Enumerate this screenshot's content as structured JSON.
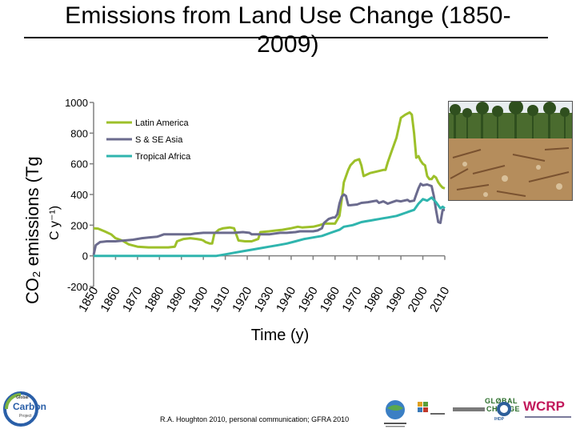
{
  "slide": {
    "title_line1": "Emissions from Land Use Change (1850-",
    "title_line2": "2009)",
    "credit": "R.A. Houghton 2010, personal communication; GFRA 2010"
  },
  "logos": {
    "gcp_small": "Global",
    "gcp_main": "Carbon",
    "gcp_sub": "Project",
    "global_change_1": "GLØBAL",
    "global_change_2": "CHANGE",
    "wcrp": "WCRP",
    "ihdp": "IHDP"
  },
  "chart_data": {
    "type": "line",
    "title": "",
    "ylabel_main": "CO₂ emissions (Tg",
    "ylabel_unit": "C y⁻¹)",
    "xlabel": "Time (y)",
    "xlim": [
      1850,
      2010
    ],
    "ylim": [
      -200,
      1000
    ],
    "yticks": [
      "-200",
      "0",
      "200",
      "400",
      "600",
      "800",
      "1000"
    ],
    "xticks": [
      "1850",
      "1860",
      "1870",
      "1880",
      "1890",
      "1900",
      "1910",
      "1920",
      "1930",
      "1940",
      "1950",
      "1960",
      "1970",
      "1980",
      "1990",
      "2000",
      "2010"
    ],
    "legend_position": "top-left",
    "series": [
      {
        "name": "Latin America",
        "color": "#9dc02a",
        "points": [
          [
            1850,
            180
          ],
          [
            1852,
            178
          ],
          [
            1855,
            160
          ],
          [
            1858,
            140
          ],
          [
            1860,
            115
          ],
          [
            1863,
            100
          ],
          [
            1866,
            75
          ],
          [
            1870,
            60
          ],
          [
            1875,
            55
          ],
          [
            1880,
            55
          ],
          [
            1884,
            55
          ],
          [
            1887,
            60
          ],
          [
            1888,
            95
          ],
          [
            1891,
            110
          ],
          [
            1894,
            115
          ],
          [
            1897,
            110
          ],
          [
            1899,
            105
          ],
          [
            1900,
            100
          ],
          [
            1901,
            90
          ],
          [
            1903,
            80
          ],
          [
            1904,
            80
          ],
          [
            1905,
            145
          ],
          [
            1907,
            170
          ],
          [
            1909,
            180
          ],
          [
            1912,
            185
          ],
          [
            1914,
            180
          ],
          [
            1916,
            100
          ],
          [
            1919,
            95
          ],
          [
            1922,
            95
          ],
          [
            1925,
            110
          ],
          [
            1926,
            155
          ],
          [
            1930,
            160
          ],
          [
            1933,
            165
          ],
          [
            1936,
            170
          ],
          [
            1938,
            175
          ],
          [
            1940,
            180
          ],
          [
            1943,
            190
          ],
          [
            1945,
            185
          ],
          [
            1950,
            190
          ],
          [
            1953,
            200
          ],
          [
            1955,
            210
          ],
          [
            1958,
            210
          ],
          [
            1960,
            210
          ],
          [
            1962,
            260
          ],
          [
            1963,
            360
          ],
          [
            1964,
            480
          ],
          [
            1966,
            560
          ],
          [
            1967,
            590
          ],
          [
            1969,
            620
          ],
          [
            1971,
            630
          ],
          [
            1972,
            590
          ],
          [
            1973,
            520
          ],
          [
            1976,
            540
          ],
          [
            1979,
            550
          ],
          [
            1982,
            560
          ],
          [
            1983,
            560
          ],
          [
            1984,
            610
          ],
          [
            1986,
            690
          ],
          [
            1988,
            770
          ],
          [
            1990,
            900
          ],
          [
            1992,
            920
          ],
          [
            1994,
            935
          ],
          [
            1995,
            920
          ],
          [
            1996,
            800
          ],
          [
            1997,
            640
          ],
          [
            1998,
            650
          ],
          [
            1999,
            620
          ],
          [
            2000,
            600
          ],
          [
            2001,
            590
          ],
          [
            2002,
            520
          ],
          [
            2003,
            500
          ],
          [
            2004,
            500
          ],
          [
            2005,
            520
          ],
          [
            2006,
            510
          ],
          [
            2007,
            480
          ],
          [
            2008,
            460
          ],
          [
            2009,
            445
          ],
          [
            2010,
            440
          ]
        ]
      },
      {
        "name": "S & SE Asia",
        "color": "#6b6b8e",
        "points": [
          [
            1850,
            5
          ],
          [
            1851,
            70
          ],
          [
            1853,
            90
          ],
          [
            1856,
            95
          ],
          [
            1860,
            95
          ],
          [
            1864,
            100
          ],
          [
            1868,
            105
          ],
          [
            1872,
            115
          ],
          [
            1875,
            120
          ],
          [
            1879,
            125
          ],
          [
            1880,
            130
          ],
          [
            1882,
            140
          ],
          [
            1884,
            140
          ],
          [
            1890,
            140
          ],
          [
            1894,
            140
          ],
          [
            1896,
            145
          ],
          [
            1900,
            150
          ],
          [
            1905,
            150
          ],
          [
            1910,
            150
          ],
          [
            1914,
            150
          ],
          [
            1918,
            155
          ],
          [
            1921,
            150
          ],
          [
            1922,
            140
          ],
          [
            1926,
            140
          ],
          [
            1930,
            140
          ],
          [
            1935,
            150
          ],
          [
            1938,
            150
          ],
          [
            1942,
            155
          ],
          [
            1944,
            160
          ],
          [
            1946,
            160
          ],
          [
            1950,
            160
          ],
          [
            1952,
            165
          ],
          [
            1954,
            180
          ],
          [
            1955,
            215
          ],
          [
            1957,
            240
          ],
          [
            1958,
            245
          ],
          [
            1959,
            250
          ],
          [
            1960,
            250
          ],
          [
            1961,
            270
          ],
          [
            1962,
            340
          ],
          [
            1963,
            385
          ],
          [
            1964,
            400
          ],
          [
            1965,
            390
          ],
          [
            1966,
            330
          ],
          [
            1967,
            330
          ],
          [
            1970,
            335
          ],
          [
            1972,
            345
          ],
          [
            1975,
            350
          ],
          [
            1977,
            355
          ],
          [
            1979,
            360
          ],
          [
            1980,
            345
          ],
          [
            1982,
            355
          ],
          [
            1984,
            340
          ],
          [
            1986,
            350
          ],
          [
            1988,
            360
          ],
          [
            1990,
            355
          ],
          [
            1993,
            365
          ],
          [
            1994,
            355
          ],
          [
            1996,
            360
          ],
          [
            1997,
            400
          ],
          [
            1998,
            440
          ],
          [
            1999,
            470
          ],
          [
            2000,
            460
          ],
          [
            2002,
            465
          ],
          [
            2004,
            455
          ],
          [
            2005,
            390
          ],
          [
            2006,
            300
          ],
          [
            2007,
            220
          ],
          [
            2008,
            215
          ],
          [
            2009,
            300
          ],
          [
            2010,
            300
          ]
        ]
      },
      {
        "name": "Tropical Africa",
        "color": "#2fb5ae",
        "points": [
          [
            1850,
            0
          ],
          [
            1860,
            0
          ],
          [
            1870,
            0
          ],
          [
            1880,
            0
          ],
          [
            1890,
            0
          ],
          [
            1900,
            0
          ],
          [
            1906,
            0
          ],
          [
            1910,
            10
          ],
          [
            1914,
            20
          ],
          [
            1918,
            30
          ],
          [
            1922,
            40
          ],
          [
            1926,
            50
          ],
          [
            1930,
            60
          ],
          [
            1934,
            70
          ],
          [
            1938,
            80
          ],
          [
            1942,
            95
          ],
          [
            1946,
            110
          ],
          [
            1950,
            120
          ],
          [
            1954,
            130
          ],
          [
            1958,
            150
          ],
          [
            1962,
            170
          ],
          [
            1964,
            190
          ],
          [
            1966,
            195
          ],
          [
            1968,
            200
          ],
          [
            1970,
            210
          ],
          [
            1972,
            220
          ],
          [
            1974,
            225
          ],
          [
            1976,
            230
          ],
          [
            1978,
            235
          ],
          [
            1980,
            240
          ],
          [
            1982,
            245
          ],
          [
            1984,
            250
          ],
          [
            1986,
            255
          ],
          [
            1988,
            260
          ],
          [
            1990,
            270
          ],
          [
            1992,
            280
          ],
          [
            1994,
            290
          ],
          [
            1996,
            300
          ],
          [
            1998,
            340
          ],
          [
            2000,
            370
          ],
          [
            2002,
            360
          ],
          [
            2004,
            380
          ],
          [
            2006,
            350
          ],
          [
            2008,
            310
          ],
          [
            2009,
            320
          ],
          [
            2010,
            310
          ]
        ]
      }
    ]
  }
}
